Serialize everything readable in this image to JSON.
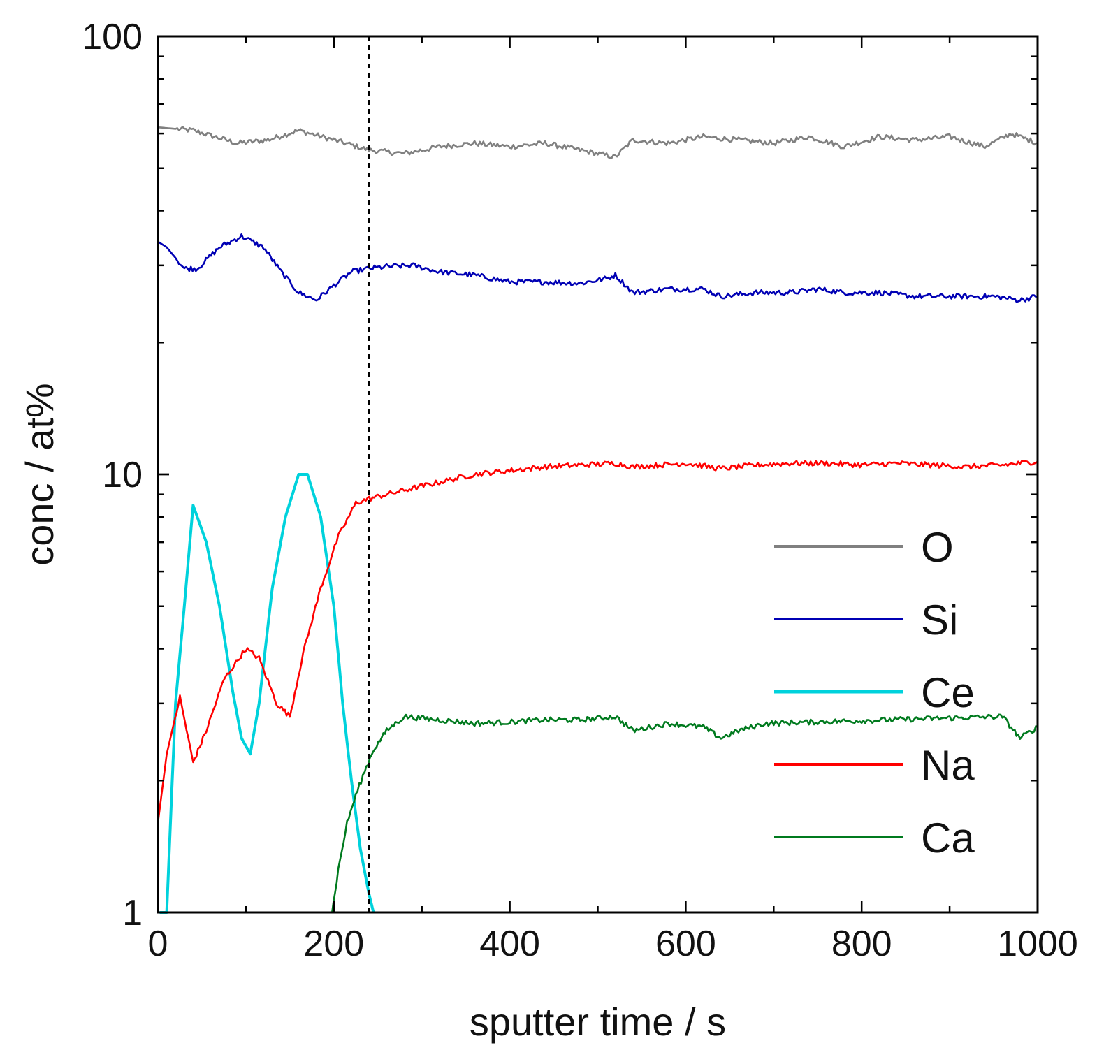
{
  "chart_data": {
    "type": "line",
    "title": "",
    "xlabel": "sputter time / s",
    "ylabel": "conc / at%",
    "xlim": [
      0,
      1000
    ],
    "ylim": [
      1,
      100
    ],
    "yscale": "log",
    "x_ticks": [
      0,
      200,
      400,
      600,
      800,
      1000
    ],
    "x_tick_labels": [
      "0",
      "200",
      "400",
      "600",
      "800",
      "1000"
    ],
    "y_ticks": [
      1,
      10,
      100
    ],
    "y_tick_labels": [
      "1",
      "10",
      "100"
    ],
    "vline_x": 240,
    "legend_position": "lower-right",
    "series": [
      {
        "name": "O",
        "color": "#808080",
        "x": [
          0,
          40,
          90,
          125,
          160,
          200,
          240,
          280,
          320,
          360,
          400,
          440,
          480,
          520,
          540,
          580,
          620,
          660,
          700,
          740,
          780,
          820,
          860,
          900,
          940,
          970,
          1000
        ],
        "y": [
          62,
          61,
          57,
          58,
          61,
          58,
          55,
          54,
          56,
          57,
          56,
          57,
          55,
          53,
          58,
          57,
          59,
          58,
          57,
          59,
          56,
          59,
          58,
          59,
          56,
          60,
          57
        ]
      },
      {
        "name": "Si",
        "color": "#0000b4",
        "x": [
          0,
          10,
          30,
          45,
          70,
          95,
          120,
          140,
          160,
          180,
          200,
          220,
          240,
          260,
          290,
          320,
          360,
          400,
          440,
          480,
          510,
          520,
          540,
          580,
          620,
          640,
          680,
          720,
          750,
          780,
          820,
          860,
          900,
          950,
          980,
          1000
        ],
        "y": [
          34,
          33,
          29.5,
          29.5,
          33,
          35,
          33,
          29,
          26,
          25,
          27,
          29,
          29.5,
          29.8,
          30,
          29,
          28.5,
          27.5,
          27.5,
          27.3,
          28,
          28.5,
          26,
          26.5,
          26.5,
          25.5,
          26,
          26,
          26.5,
          26,
          26,
          25.5,
          25.5,
          25.5,
          25,
          25.5
        ]
      },
      {
        "name": "Ce",
        "color": "#00d2dc",
        "x": [
          2,
          10,
          20,
          30,
          40,
          55,
          70,
          85,
          95,
          105,
          115,
          130,
          145,
          160,
          170,
          185,
          200,
          210,
          220,
          230,
          240,
          245
        ],
        "y": [
          1,
          1,
          3,
          5,
          8.5,
          7,
          5,
          3.2,
          2.5,
          2.3,
          3,
          5.5,
          8,
          10,
          10,
          8,
          5,
          3,
          2,
          1.4,
          1.1,
          1
        ]
      },
      {
        "name": "Na",
        "color": "#ff0000",
        "x": [
          0,
          10,
          25,
          40,
          55,
          75,
          100,
          115,
          135,
          150,
          165,
          185,
          205,
          225,
          240,
          280,
          320,
          360,
          400,
          440,
          480,
          520,
          540,
          600,
          640,
          680,
          720,
          760,
          800,
          840,
          880,
          920,
          960,
          980,
          1000
        ],
        "y": [
          1.6,
          2.3,
          3.1,
          2.2,
          2.6,
          3.4,
          4,
          3.8,
          3,
          2.8,
          3.9,
          5.5,
          7.2,
          8.6,
          8.8,
          9.2,
          9.6,
          10,
          10.2,
          10.4,
          10.5,
          10.6,
          10.4,
          10.6,
          10.3,
          10.5,
          10.6,
          10.6,
          10.5,
          10.6,
          10.5,
          10.4,
          10.5,
          10.6,
          10.7
        ]
      },
      {
        "name": "Ca",
        "color": "#007a1e",
        "x": [
          198,
          205,
          215,
          225,
          235,
          245,
          260,
          280,
          320,
          360,
          400,
          440,
          480,
          520,
          540,
          580,
          620,
          640,
          660,
          690,
          960,
          980,
          1000
        ],
        "y": [
          1,
          1.25,
          1.6,
          1.85,
          2.1,
          2.35,
          2.6,
          2.8,
          2.75,
          2.7,
          2.72,
          2.75,
          2.75,
          2.8,
          2.6,
          2.7,
          2.65,
          2.5,
          2.6,
          2.7,
          2.8,
          2.5,
          2.65
        ]
      }
    ]
  }
}
